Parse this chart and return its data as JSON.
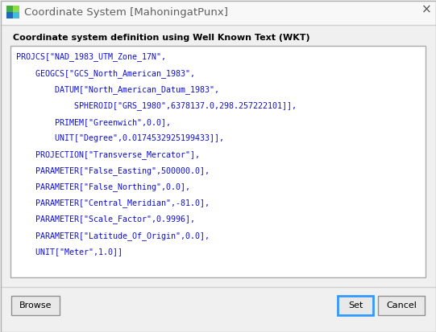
{
  "title": "Coordinate System [MahoningatPunx]",
  "bg_color": "#f0f0f0",
  "dialog_bg": "#f0f0f0",
  "text_box_bg": "#ffffff",
  "text_box_border": "#aaaaaa",
  "subtitle": "Coordinate system definition using Well Known Text (WKT)",
  "subtitle_color": "#000000",
  "subtitle_fontsize": 8.0,
  "wkt_color": "#1010cc",
  "wkt_fontsize": 7.2,
  "wkt_lines": [
    "PROJCS[\"NAD_1983_UTM_Zone_17N\",",
    "    GEOGCS[\"GCS_North_American_1983\",",
    "        DATUM[\"North_American_Datum_1983\",",
    "            SPHEROID[\"GRS_1980\",6378137.0,298.257222101]],",
    "        PRIMEM[\"Greenwich\",0.0],",
    "        UNIT[\"Degree\",0.0174532925199433]],",
    "    PROJECTION[\"Transverse_Mercator\"],",
    "    PARAMETER[\"False_Easting\",500000.0],",
    "    PARAMETER[\"False_Northing\",0.0],",
    "    PARAMETER[\"Central_Meridian\",-81.0],",
    "    PARAMETER[\"Scale_Factor\",0.9996],",
    "    PARAMETER[\"Latitude_Of_Origin\",0.0],",
    "    UNIT[\"Meter\",1.0]]"
  ],
  "title_color": "#606060",
  "title_fontsize": 9.5,
  "button_labels": [
    "Browse",
    "Set",
    "Cancel"
  ],
  "button_bg": "#e8e8e8",
  "button_border": "#909090",
  "set_button_border": "#3399ff",
  "icon_colors": [
    "#44aa44",
    "#88dd44",
    "#2266bb",
    "#44bbdd"
  ],
  "titlebar_bg": "#f8f8f8",
  "separator_color": "#d0d0d0"
}
